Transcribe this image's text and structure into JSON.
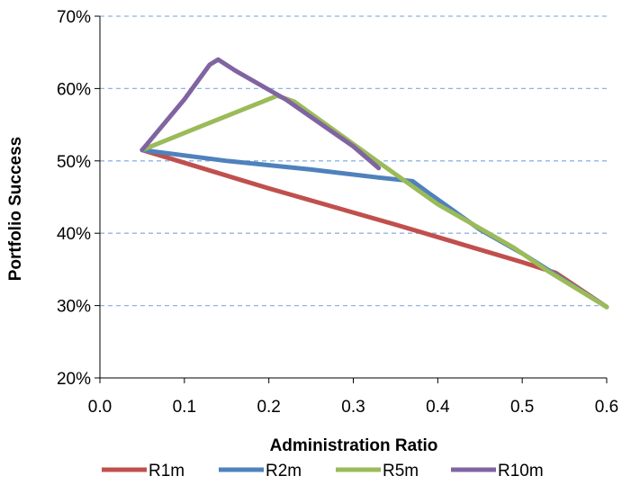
{
  "chart_data": {
    "type": "line",
    "title": "",
    "xlabel": "Administration Ratio",
    "ylabel": "Portfolio Success",
    "xlim": [
      0.0,
      0.6
    ],
    "ylim": [
      20,
      70
    ],
    "x_ticks": [
      "0.0",
      "0.1",
      "0.2",
      "0.3",
      "0.4",
      "0.5",
      "0.6"
    ],
    "y_ticks": [
      "20%",
      "30%",
      "40%",
      "50%",
      "60%",
      "70%"
    ],
    "grid": "horizontal dashed",
    "legend_position": "bottom",
    "series": [
      {
        "name": "R1m",
        "color": "#C0504D",
        "points": [
          [
            0.05,
            51.5
          ],
          [
            0.2,
            46.2
          ],
          [
            0.35,
            41.2
          ],
          [
            0.5,
            36.0
          ],
          [
            0.54,
            34.5
          ],
          [
            0.6,
            29.8
          ]
        ]
      },
      {
        "name": "R2m",
        "color": "#4F81BD",
        "points": [
          [
            0.05,
            51.5
          ],
          [
            0.15,
            50.0
          ],
          [
            0.25,
            48.8
          ],
          [
            0.33,
            47.7
          ],
          [
            0.37,
            47.2
          ],
          [
            0.39,
            45.5
          ],
          [
            0.45,
            40.5
          ],
          [
            0.5,
            37.2
          ],
          [
            0.6,
            29.8
          ]
        ]
      },
      {
        "name": "R5m",
        "color": "#9BBB59",
        "points": [
          [
            0.05,
            51.5
          ],
          [
            0.12,
            54.8
          ],
          [
            0.18,
            57.6
          ],
          [
            0.21,
            59.0
          ],
          [
            0.23,
            58.2
          ],
          [
            0.33,
            49.8
          ],
          [
            0.4,
            44.0
          ],
          [
            0.49,
            38.0
          ],
          [
            0.53,
            34.8
          ],
          [
            0.6,
            29.8
          ]
        ]
      },
      {
        "name": "R10m",
        "color": "#8064A2",
        "points": [
          [
            0.05,
            51.5
          ],
          [
            0.1,
            58.5
          ],
          [
            0.13,
            63.3
          ],
          [
            0.14,
            64.0
          ],
          [
            0.16,
            62.5
          ],
          [
            0.22,
            58.5
          ],
          [
            0.3,
            52.0
          ],
          [
            0.33,
            49.0
          ]
        ]
      }
    ]
  }
}
